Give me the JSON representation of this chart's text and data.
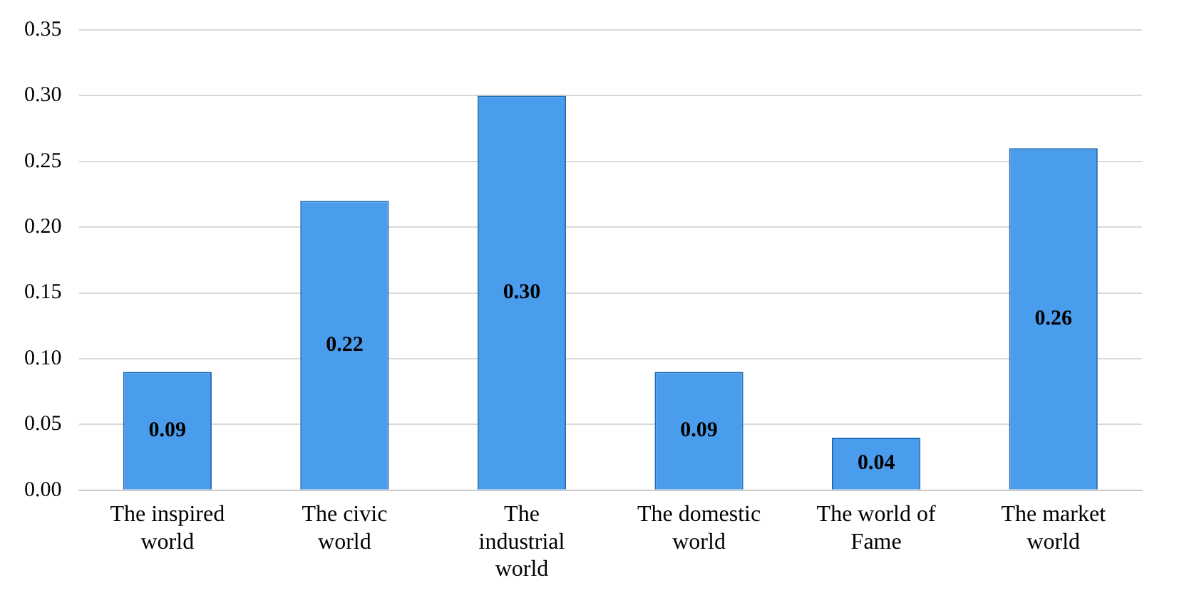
{
  "chart_data": {
    "type": "bar",
    "categories": [
      "The inspired world",
      "The civic world",
      "The industrial world",
      "The domestic world",
      "The world of Fame",
      "The market world"
    ],
    "values": [
      0.09,
      0.22,
      0.3,
      0.09,
      0.04,
      0.26
    ],
    "color": "#4a9cec",
    "ylim": [
      0,
      0.35
    ],
    "yticks": [
      {
        "value": 0,
        "label": "0.00"
      },
      {
        "value": 0.05,
        "label": "0.05"
      },
      {
        "value": 0.1,
        "label": "0.10"
      },
      {
        "value": 0.15,
        "label": "0.15"
      },
      {
        "value": 0.2,
        "label": "0.20"
      },
      {
        "value": 0.25,
        "label": "0.25"
      },
      {
        "value": 0.3,
        "label": "0.30"
      },
      {
        "value": 0.35,
        "label": "0.35"
      }
    ],
    "value_labels": [
      "0.09",
      "0.22",
      "0.30",
      "0.09",
      "0.04",
      "0.26"
    ],
    "grid": "y",
    "legend": false
  }
}
